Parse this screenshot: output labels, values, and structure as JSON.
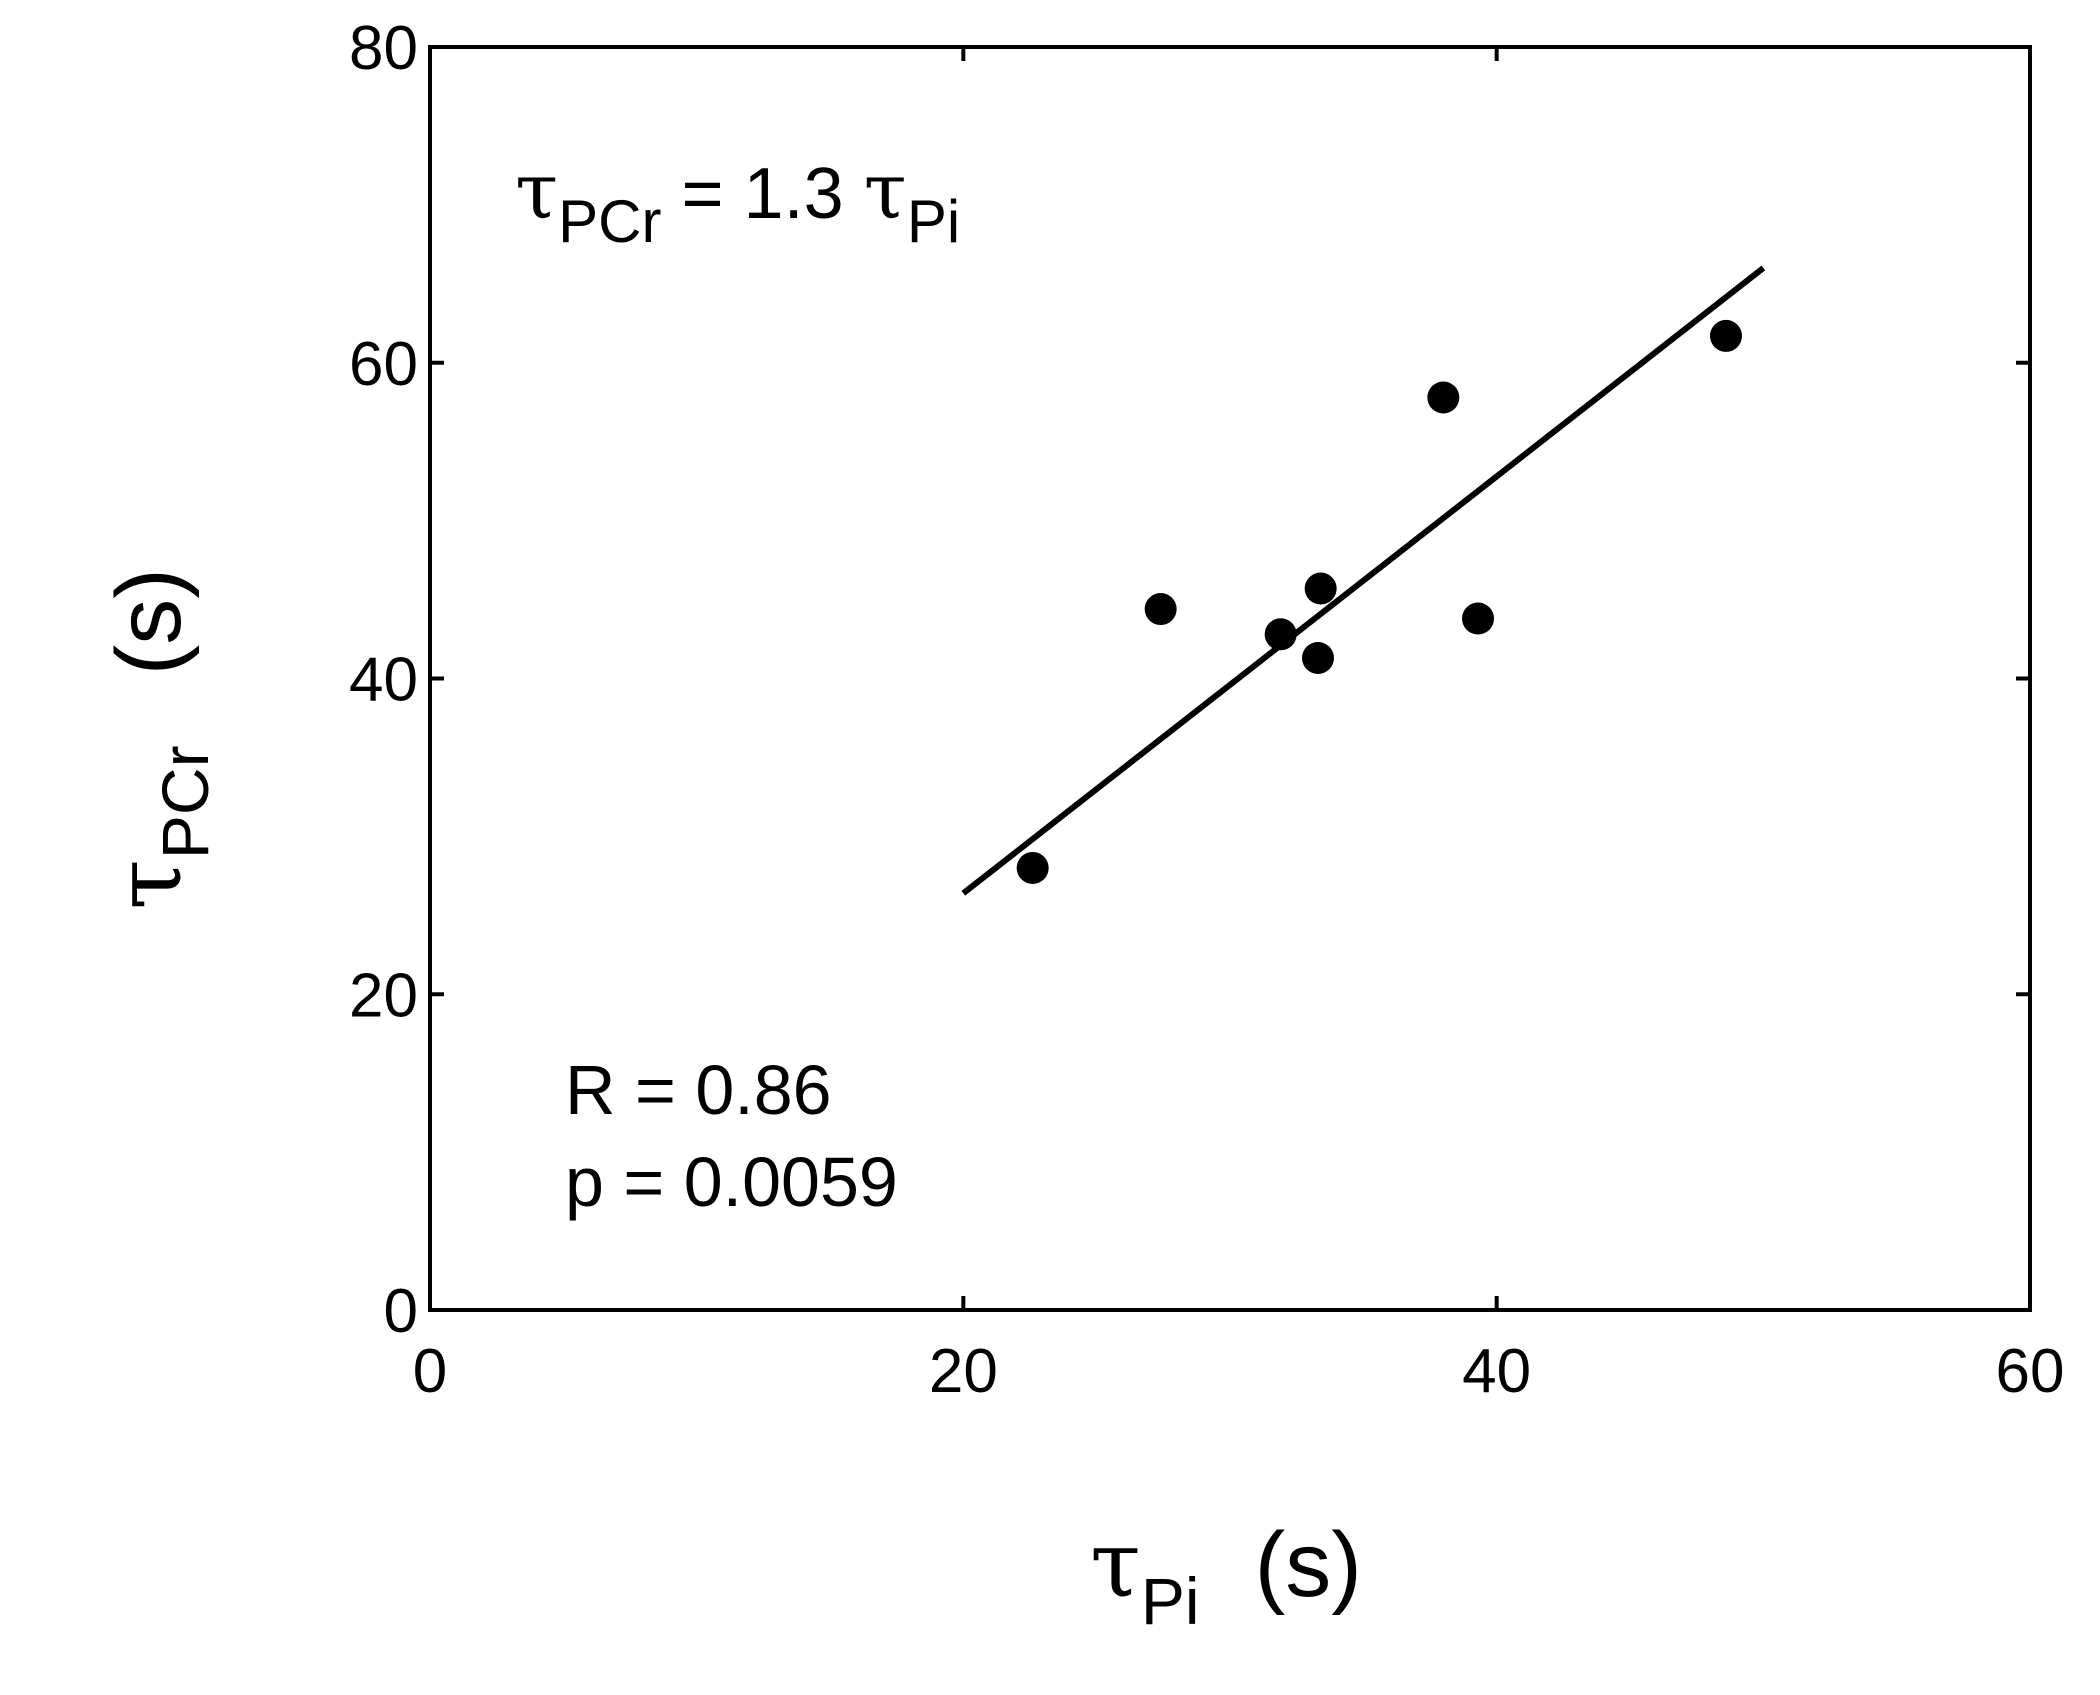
{
  "chart_data": {
    "type": "scatter",
    "title": "",
    "xlabel": {
      "symbol": "τ",
      "subscript": "Pi",
      "unit": "(s)"
    },
    "ylabel": {
      "symbol": "τ",
      "subscript": "PCr",
      "unit": "(s)"
    },
    "xlim": [
      0,
      60
    ],
    "ylim": [
      0,
      80
    ],
    "xticks": [
      0,
      20,
      40,
      60
    ],
    "yticks": [
      0,
      20,
      40,
      60,
      80
    ],
    "xtick_labels": [
      "0",
      "20",
      "40",
      "60"
    ],
    "ytick_labels": [
      "0",
      "20",
      "40",
      "60",
      "80"
    ],
    "grid": false,
    "legend": null,
    "series": [
      {
        "x": [
          22.6,
          27.4,
          31.9,
          33.3,
          33.4,
          38.0,
          39.3,
          48.6
        ],
        "y": [
          28.0,
          44.4,
          42.8,
          41.3,
          45.7,
          57.8,
          43.8,
          61.7
        ]
      }
    ],
    "fit_line": {
      "slope": 1.3,
      "x_start": 20,
      "x_end": 50,
      "y_start": 26.4,
      "y_end": 66.0
    },
    "annotations": {
      "equation": {
        "lhs_symbol": "τ",
        "lhs_sub": "PCr",
        "middle": " = 1.3 ",
        "rhs_symbol": "τ",
        "rhs_sub": "Pi"
      },
      "r_value": "R = 0.86",
      "p_value": "p = 0.0059"
    },
    "colors": {
      "points": "#000000",
      "line": "#000000",
      "axes": "#000000"
    }
  }
}
